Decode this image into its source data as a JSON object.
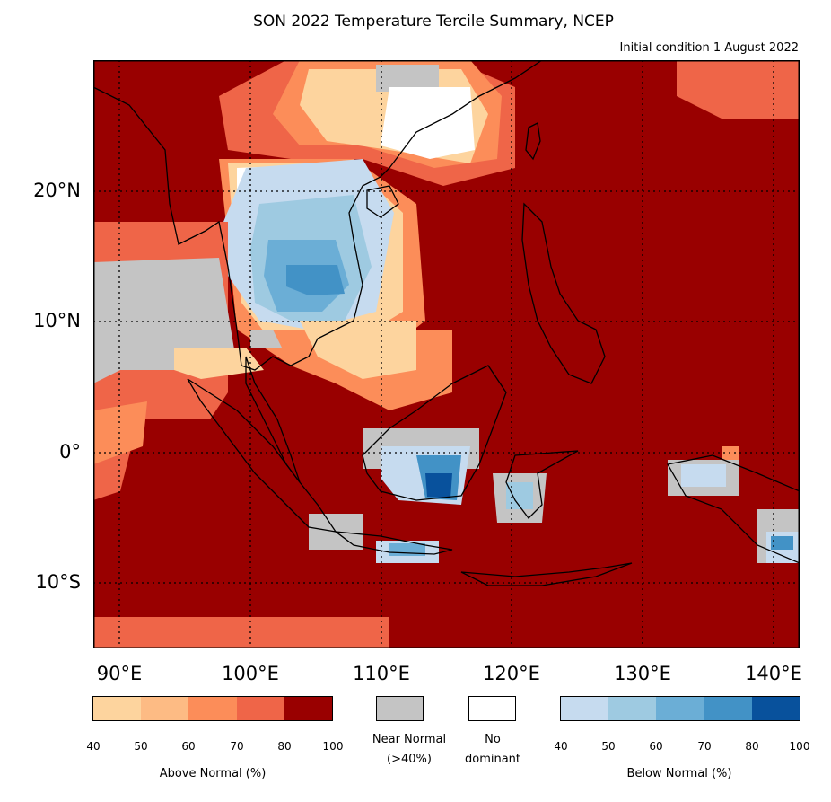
{
  "title": "SON 2022 Temperature Tercile Summary, NCEP",
  "subtitle": "Initial condition 1 August 2022",
  "lat_labels": [
    "20°N",
    "10°N",
    "0°",
    "10°S"
  ],
  "lon_labels": [
    "90°E",
    "100°E",
    "110°E",
    "120°E",
    "130°E",
    "140°E"
  ],
  "map": {
    "lon_range": [
      88,
      142
    ],
    "lat_range": [
      -15,
      30
    ],
    "gridlines": "dotted",
    "gridline_lons": [
      90,
      100,
      110,
      120,
      130,
      140
    ],
    "gridline_lats": [
      20,
      10,
      0,
      -10
    ],
    "dominant_field": "Above Normal (80-100%) over most of the domain"
  },
  "legend": {
    "above": {
      "label": "Above Normal (%)",
      "ticks": [
        "40",
        "50",
        "60",
        "70",
        "80",
        "100"
      ],
      "colors": [
        "#fdd49e",
        "#fdbb84",
        "#fc8d59",
        "#ef6548",
        "#990000"
      ]
    },
    "near_normal": {
      "line1": "Near Normal",
      "line2": "(>40%)",
      "color": "#c4c4c4"
    },
    "no_dominant": {
      "line1": "No",
      "line2": "dominant",
      "color": "#ffffff"
    },
    "below": {
      "label": "Below Normal (%)",
      "ticks": [
        "40",
        "50",
        "60",
        "70",
        "80",
        "100"
      ],
      "colors": [
        "#c6dbef",
        "#9ecae1",
        "#6baed6",
        "#4292c6",
        "#08519c"
      ]
    }
  }
}
